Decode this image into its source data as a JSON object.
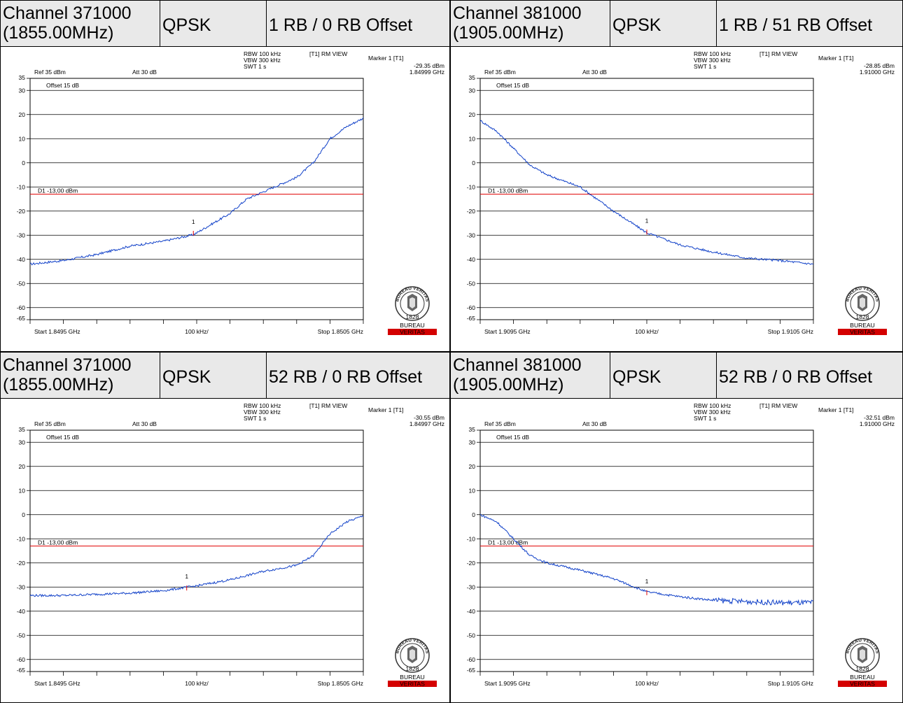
{
  "panels": [
    {
      "header": {
        "channel": "Channel 371000",
        "freq": "(1855.00MHz)",
        "modulation": "QPSK",
        "rb": "1 RB / 0 RB Offset"
      },
      "chart_data": {
        "type": "line",
        "ref_level": "Ref 35 dBm",
        "attenuation": "Att 30 dB",
        "offset": "Offset 15 dB",
        "rbw": "RBW 100 kHz",
        "vbw": "VBW 300 kHz",
        "swt": "SWT 1 s",
        "trace_mode": "[T1] RM VIEW",
        "marker_title": "Marker 1 [T1]",
        "marker_level": "-29.35 dBm",
        "marker_freq": "1.84999 GHz",
        "limit_label": "D1 -13,00 dBm",
        "limit_value": -13,
        "start_label": "Start 1.8495 GHz",
        "div_label": "100 kHz/",
        "stop_label": "Stop 1.8505 GHz",
        "xlim": [
          1.8495,
          1.8505
        ],
        "ylim": [
          -65,
          35
        ],
        "y_ticks": [
          35,
          30,
          20,
          10,
          0,
          -10,
          -20,
          -30,
          -40,
          -50,
          -60,
          -65
        ],
        "marker": {
          "x": 1.84999,
          "y": -29.35,
          "label": "1"
        },
        "series": [
          {
            "x": [
              1.8495,
              1.8496,
              1.8497,
              1.8498,
              1.8499,
              1.84999,
              1.8501,
              1.85015,
              1.8502,
              1.8503,
              1.85035,
              1.8504,
              1.85045,
              1.8505
            ],
            "y": [
              -42,
              -40.5,
              -38,
              -34.5,
              -32.5,
              -29.8,
              -21,
              -15,
              -12,
              -6,
              0,
              10,
              15,
              18.5
            ]
          }
        ]
      },
      "logo": {
        "top": "BUREAU VERITAS",
        "year": "1828",
        "word1": "BUREAU",
        "word2": "VERITAS"
      }
    },
    {
      "header": {
        "channel": "Channel 381000",
        "freq": "(1905.00MHz)",
        "modulation": "QPSK",
        "rb": "1 RB / 51 RB Offset"
      },
      "chart_data": {
        "type": "line",
        "ref_level": "Ref 35 dBm",
        "attenuation": "Att 30 dB",
        "offset": "Offset 15 dB",
        "rbw": "RBW 100 kHz",
        "vbw": "VBW 300 kHz",
        "swt": "SWT 1 s",
        "trace_mode": "[T1] RM VIEW",
        "marker_title": "Marker 1 [T1]",
        "marker_level": "-28.85 dBm",
        "marker_freq": "1.91000 GHz",
        "limit_label": "D1 -13,00 dBm",
        "limit_value": -13,
        "start_label": "Start 1.9095 GHz",
        "div_label": "100 kHz/",
        "stop_label": "Stop 1.9105 GHz",
        "xlim": [
          1.9095,
          1.9105
        ],
        "ylim": [
          -65,
          35
        ],
        "y_ticks": [
          35,
          30,
          20,
          10,
          0,
          -10,
          -20,
          -30,
          -40,
          -50,
          -60,
          -65
        ],
        "marker": {
          "x": 1.91,
          "y": -28.85,
          "label": "1"
        },
        "series": [
          {
            "x": [
              1.9095,
              1.90955,
              1.9096,
              1.90965,
              1.9097,
              1.9098,
              1.9099,
              1.91,
              1.9101,
              1.9102,
              1.9103,
              1.9104,
              1.9105
            ],
            "y": [
              17.5,
              13,
              6,
              -1,
              -5,
              -10,
              -20,
              -29,
              -34,
              -37,
              -39.5,
              -40.5,
              -42
            ]
          }
        ]
      },
      "logo": {
        "top": "BUREAU VERITAS",
        "year": "1828",
        "word1": "BUREAU",
        "word2": "VERITAS"
      }
    },
    {
      "header": {
        "channel": "Channel 371000",
        "freq": "(1855.00MHz)",
        "modulation": "QPSK",
        "rb": "52 RB / 0 RB Offset"
      },
      "chart_data": {
        "type": "line",
        "ref_level": "Ref 35 dBm",
        "attenuation": "Att 30 dB",
        "offset": "Offset 15 dB",
        "rbw": "RBW 100 kHz",
        "vbw": "VBW 300 kHz",
        "swt": "SWT 1 s",
        "trace_mode": "[T1] RM VIEW",
        "marker_title": "Marker 1 [T1]",
        "marker_level": "-30.55 dBm",
        "marker_freq": "1.84997 GHz",
        "limit_label": "D1 -13,00 dBm",
        "limit_value": -13,
        "start_label": "Start 1.8495 GHz",
        "div_label": "100 kHz/",
        "stop_label": "Stop 1.8505 GHz",
        "xlim": [
          1.8495,
          1.8505
        ],
        "ylim": [
          -65,
          35
        ],
        "y_ticks": [
          35,
          30,
          20,
          10,
          0,
          -10,
          -20,
          -30,
          -40,
          -50,
          -60,
          -65
        ],
        "marker": {
          "x": 1.84997,
          "y": -30.55,
          "label": "1"
        },
        "series": [
          {
            "x": [
              1.8495,
              1.8496,
              1.8497,
              1.8498,
              1.8499,
              1.85,
              1.8501,
              1.8502,
              1.8503,
              1.85035,
              1.8504,
              1.85045,
              1.8505
            ],
            "y": [
              -33.5,
              -33.5,
              -33,
              -32.5,
              -31.5,
              -29.5,
              -27,
              -23.5,
              -21,
              -17,
              -8,
              -3,
              -0.5
            ]
          }
        ]
      },
      "logo": {
        "top": "BUREAU VERITAS",
        "year": "1828",
        "word1": "BUREAU",
        "word2": "VERITAS"
      }
    },
    {
      "header": {
        "channel": "Channel 381000",
        "freq": "(1905.00MHz)",
        "modulation": "QPSK",
        "rb": "52 RB / 0 RB Offset"
      },
      "chart_data": {
        "type": "line",
        "ref_level": "Ref 35 dBm",
        "attenuation": "Att 30 dB",
        "offset": "Offset 15 dB",
        "rbw": "RBW 100 kHz",
        "vbw": "VBW 300 kHz",
        "swt": "SWT 1 s",
        "trace_mode": "[T1] RM VIEW",
        "marker_title": "Marker 1 [T1]",
        "marker_level": "-32.51 dBm",
        "marker_freq": "1.91000 GHz",
        "limit_label": "D1 -13,00 dBm",
        "limit_value": -13,
        "start_label": "Start 1.9095 GHz",
        "div_label": "100 kHz/",
        "stop_label": "Stop 1.9105 GHz",
        "xlim": [
          1.9095,
          1.9105
        ],
        "ylim": [
          -65,
          35
        ],
        "y_ticks": [
          35,
          30,
          20,
          10,
          0,
          -10,
          -20,
          -30,
          -40,
          -50,
          -60,
          -65
        ],
        "marker": {
          "x": 1.91,
          "y": -32.51,
          "label": "1"
        },
        "series": [
          {
            "x": [
              1.9095,
              1.90955,
              1.9096,
              1.90965,
              1.9097,
              1.9098,
              1.9099,
              1.91,
              1.9101,
              1.9102,
              1.9103,
              1.9104,
              1.9105
            ],
            "y": [
              0,
              -3,
              -10,
              -17,
              -20,
              -23,
              -26.5,
              -32,
              -34,
              -35.5,
              -36,
              -36.5,
              -36.5
            ]
          }
        ]
      },
      "logo": {
        "top": "BUREAU VERITAS",
        "year": "1828",
        "word1": "BUREAU",
        "word2": "VERITAS"
      }
    }
  ],
  "colors": {
    "trace": "#1040c8",
    "limit": "#e00000",
    "header_bg": "#e9e9e9"
  }
}
